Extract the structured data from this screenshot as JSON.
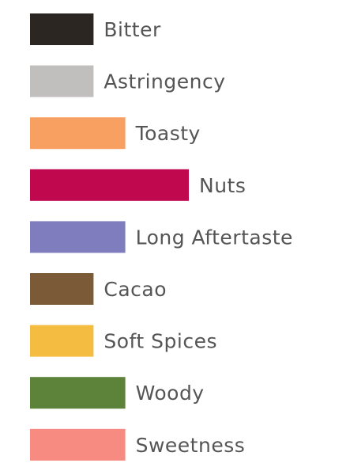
{
  "chart_data": {
    "type": "bar",
    "orientation": "horizontal",
    "categories": [
      "Bitter",
      "Astringency",
      "Toasty",
      "Nuts",
      "Long Aftertaste",
      "Cacao",
      "Soft Spices",
      "Woody",
      "Sweetness"
    ],
    "values": [
      2,
      2,
      3,
      5,
      3,
      2,
      2,
      3,
      3
    ],
    "colors": [
      "#2b2622",
      "#c0bfbd",
      "#f8a062",
      "#c0084e",
      "#7f7dbd",
      "#7a5a37",
      "#f4bd42",
      "#5d823a",
      "#f78b82"
    ],
    "xlim": [
      0,
      5
    ]
  }
}
